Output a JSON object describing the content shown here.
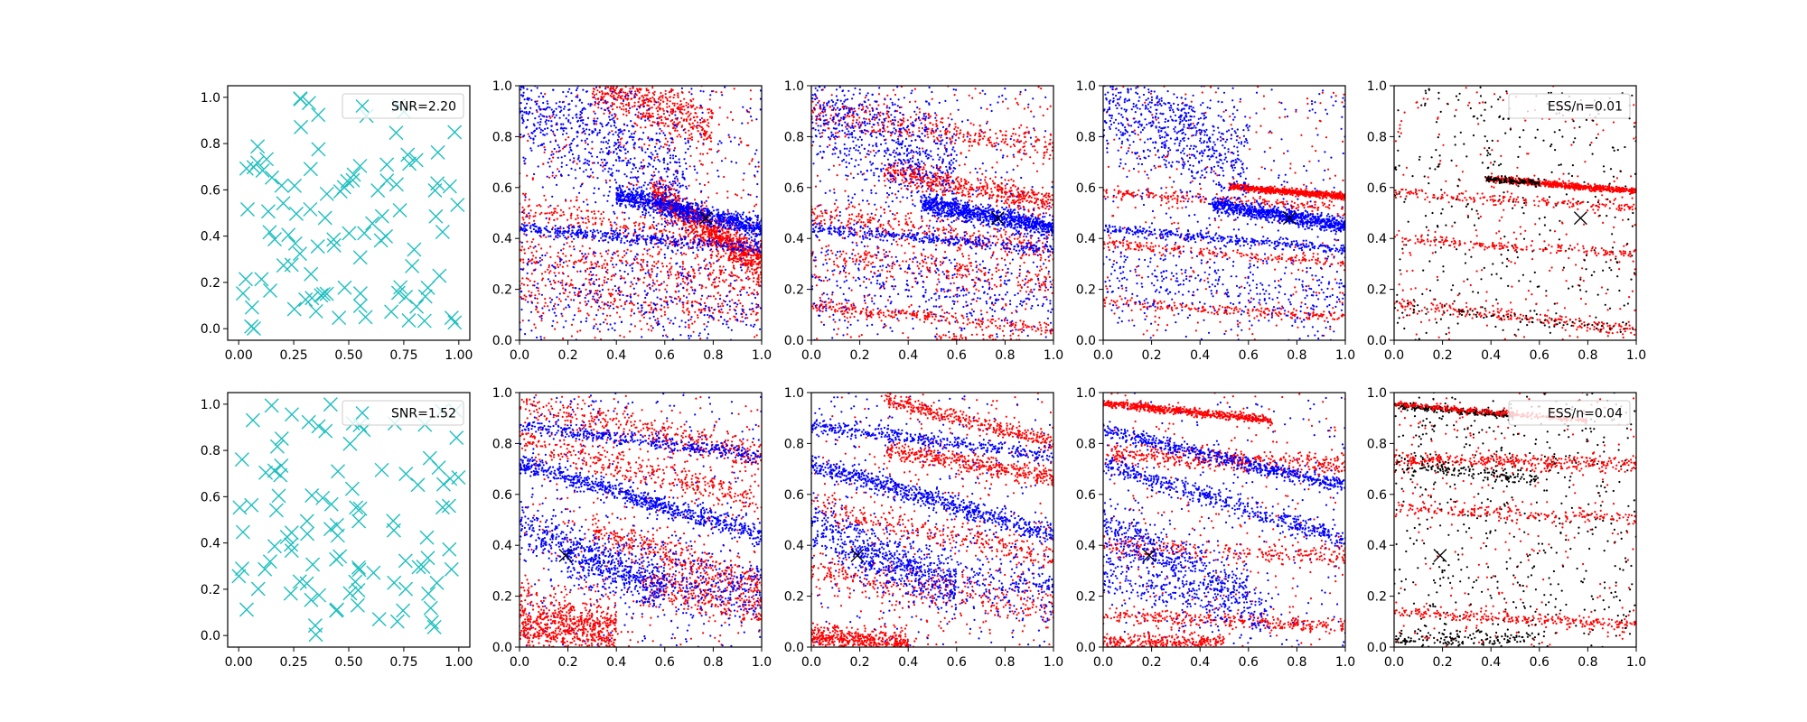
{
  "figure": {
    "background": "#ffffff",
    "colors": {
      "uniform_marker": "#1fbfbf",
      "series_a": "#ff0000",
      "series_b": "#0000ff",
      "weighted": "#000000",
      "true_marker": "#000000"
    }
  },
  "chart_data": [
    {
      "type": "scatter",
      "row": 0,
      "col": 0,
      "xlim": [
        -0.05,
        1.05
      ],
      "ylim": [
        -0.05,
        1.05
      ],
      "xticks": [
        "0.00",
        "0.25",
        "0.50",
        "0.75",
        "1.00"
      ],
      "yticks": [
        "0.0",
        "0.2",
        "0.4",
        "0.6",
        "0.8",
        "1.0"
      ],
      "marker": "x",
      "marker_color": "#1fbfbf",
      "num_points": 100,
      "seed": 11,
      "legend": {
        "label": "SNR=2.20",
        "placement": "upper right",
        "marker": "x"
      }
    },
    {
      "type": "scatter",
      "row": 0,
      "col": 1,
      "xlim": [
        0,
        1
      ],
      "ylim": [
        0,
        1
      ],
      "xticks": [
        "0.0",
        "0.2",
        "0.4",
        "0.6",
        "0.8",
        "1.0"
      ],
      "yticks": [
        "0.0",
        "0.2",
        "0.4",
        "0.6",
        "0.8",
        "1.0"
      ],
      "true_point": [
        0.77,
        0.48
      ],
      "seed": 21,
      "bands": [
        {
          "color": "red",
          "x": [
            0.0,
            1.0
          ],
          "y0": 0.52,
          "slope": -0.18,
          "spread": 0.03,
          "n": 260
        },
        {
          "color": "red",
          "x": [
            0.55,
            1.0
          ],
          "y0": 0.92,
          "slope": -0.62,
          "spread": 0.035,
          "n": 900
        },
        {
          "color": "red",
          "x": [
            0.3,
            0.8
          ],
          "y0": 1.08,
          "slope": -0.3,
          "spread": 0.05,
          "n": 500
        },
        {
          "color": "red",
          "x": [
            0.0,
            1.0
          ],
          "y0": 0.34,
          "slope": -0.12,
          "spread": 0.035,
          "n": 300
        },
        {
          "color": "red",
          "x": [
            0.0,
            1.0
          ],
          "y0": 0.2,
          "slope": -0.1,
          "spread": 0.04,
          "n": 250
        },
        {
          "color": "blue",
          "x": [
            0.4,
            1.0
          ],
          "y0": 0.66,
          "slope": -0.22,
          "spread": 0.02,
          "n": 900
        },
        {
          "color": "blue",
          "x": [
            0.0,
            1.0
          ],
          "y0": 0.44,
          "slope": -0.08,
          "spread": 0.012,
          "n": 400
        },
        {
          "color": "blue",
          "x": [
            0.0,
            0.7
          ],
          "y0": 0.95,
          "slope": -0.5,
          "spread": 0.12,
          "n": 700
        },
        {
          "color": "blue",
          "x": [
            0.0,
            1.0
          ],
          "y0": 0.2,
          "slope": -0.08,
          "spread": 0.1,
          "n": 300
        }
      ],
      "noise": {
        "red": 450,
        "blue": 350
      }
    },
    {
      "type": "scatter",
      "row": 0,
      "col": 2,
      "xlim": [
        0,
        1
      ],
      "ylim": [
        0,
        1
      ],
      "xticks": [
        "0.0",
        "0.2",
        "0.4",
        "0.6",
        "0.8",
        "1.0"
      ],
      "yticks": [
        "0.0",
        "0.2",
        "0.4",
        "0.6",
        "0.8",
        "1.0"
      ],
      "true_point": [
        0.77,
        0.48
      ],
      "seed": 31,
      "bands": [
        {
          "color": "red",
          "x": [
            0.3,
            1.0
          ],
          "y0": 0.72,
          "slope": -0.18,
          "spread": 0.025,
          "n": 500
        },
        {
          "color": "red",
          "x": [
            0.0,
            1.0
          ],
          "y0": 0.9,
          "slope": -0.15,
          "spread": 0.03,
          "n": 350
        },
        {
          "color": "red",
          "x": [
            0.0,
            1.0
          ],
          "y0": 0.5,
          "slope": -0.15,
          "spread": 0.03,
          "n": 300
        },
        {
          "color": "red",
          "x": [
            0.0,
            1.0
          ],
          "y0": 0.34,
          "slope": -0.12,
          "spread": 0.03,
          "n": 250
        },
        {
          "color": "red",
          "x": [
            0.0,
            1.0
          ],
          "y0": 0.14,
          "slope": -0.1,
          "spread": 0.012,
          "n": 250
        },
        {
          "color": "red",
          "x": [
            0.5,
            1.0
          ],
          "y0": 0.04,
          "slope": -0.06,
          "spread": 0.012,
          "n": 100
        },
        {
          "color": "blue",
          "x": [
            0.45,
            1.0
          ],
          "y0": 0.62,
          "slope": -0.18,
          "spread": 0.02,
          "n": 900
        },
        {
          "color": "blue",
          "x": [
            0.0,
            1.0
          ],
          "y0": 0.44,
          "slope": -0.08,
          "spread": 0.012,
          "n": 350
        },
        {
          "color": "blue",
          "x": [
            0.0,
            0.6
          ],
          "y0": 0.9,
          "slope": -0.4,
          "spread": 0.1,
          "n": 600
        },
        {
          "color": "blue",
          "x": [
            0.0,
            1.0
          ],
          "y0": 0.25,
          "slope": -0.1,
          "spread": 0.08,
          "n": 300
        }
      ],
      "noise": {
        "red": 400,
        "blue": 350
      }
    },
    {
      "type": "scatter",
      "row": 0,
      "col": 3,
      "xlim": [
        0,
        1
      ],
      "ylim": [
        0,
        1
      ],
      "xticks": [
        "0.0",
        "0.2",
        "0.4",
        "0.6",
        "0.8",
        "1.0"
      ],
      "yticks": [
        "0.0",
        "0.2",
        "0.4",
        "0.6",
        "0.8",
        "1.0"
      ],
      "true_point": [
        0.77,
        0.48
      ],
      "seed": 41,
      "bands": [
        {
          "color": "red",
          "x": [
            0.52,
            1.0
          ],
          "y0": 0.645,
          "slope": -0.08,
          "spread": 0.006,
          "n": 700
        },
        {
          "color": "red",
          "x": [
            0.0,
            1.0
          ],
          "y0": 0.58,
          "slope": -0.06,
          "spread": 0.01,
          "n": 200
        },
        {
          "color": "red",
          "x": [
            0.0,
            1.0
          ],
          "y0": 0.38,
          "slope": -0.08,
          "spread": 0.01,
          "n": 200
        },
        {
          "color": "red",
          "x": [
            0.0,
            1.0
          ],
          "y0": 0.15,
          "slope": -0.06,
          "spread": 0.01,
          "n": 200
        },
        {
          "color": "blue",
          "x": [
            0.45,
            1.0
          ],
          "y0": 0.6,
          "slope": -0.15,
          "spread": 0.015,
          "n": 800
        },
        {
          "color": "blue",
          "x": [
            0.0,
            1.0
          ],
          "y0": 0.44,
          "slope": -0.08,
          "spread": 0.01,
          "n": 350
        },
        {
          "color": "blue",
          "x": [
            0.0,
            0.6
          ],
          "y0": 0.95,
          "slope": -0.45,
          "spread": 0.1,
          "n": 650
        },
        {
          "color": "blue",
          "x": [
            0.0,
            1.0
          ],
          "y0": 0.25,
          "slope": -0.1,
          "spread": 0.08,
          "n": 300
        }
      ],
      "noise": {
        "red": 300,
        "blue": 300
      }
    },
    {
      "type": "scatter",
      "row": 0,
      "col": 4,
      "xlim": [
        0,
        1
      ],
      "ylim": [
        0,
        1
      ],
      "xticks": [
        "0.0",
        "0.2",
        "0.4",
        "0.6",
        "0.8",
        "1.0"
      ],
      "yticks": [
        "0.0",
        "0.2",
        "0.4",
        "0.6",
        "0.8",
        "1.0"
      ],
      "true_point": [
        0.77,
        0.48
      ],
      "seed": 51,
      "bands": [
        {
          "color": "red",
          "x": [
            0.38,
            1.0
          ],
          "y0": 0.665,
          "slope": -0.08,
          "spread": 0.006,
          "n": 650
        },
        {
          "color": "red",
          "x": [
            0.0,
            1.0
          ],
          "y0": 0.58,
          "slope": -0.06,
          "spread": 0.01,
          "n": 180
        },
        {
          "color": "red",
          "x": [
            0.0,
            1.0
          ],
          "y0": 0.4,
          "slope": -0.06,
          "spread": 0.01,
          "n": 180
        },
        {
          "color": "red",
          "x": [
            0.0,
            1.0
          ],
          "y0": 0.14,
          "slope": -0.1,
          "spread": 0.012,
          "n": 220
        },
        {
          "color": "black",
          "x": [
            0.38,
            0.6
          ],
          "y0": 0.665,
          "slope": -0.08,
          "spread": 0.006,
          "n": 120
        },
        {
          "color": "black",
          "x": [
            0.0,
            1.0
          ],
          "y0": 0.14,
          "slope": -0.1,
          "spread": 0.012,
          "n": 60
        }
      ],
      "noise": {
        "red": 250,
        "black": 350
      },
      "legend": {
        "label": "ESS/n=0.01",
        "placement": "upper right",
        "marker": "none"
      }
    },
    {
      "type": "scatter",
      "row": 1,
      "col": 0,
      "xlim": [
        -0.05,
        1.05
      ],
      "ylim": [
        -0.05,
        1.05
      ],
      "xticks": [
        "0.00",
        "0.25",
        "0.50",
        "0.75",
        "1.00"
      ],
      "yticks": [
        "0.0",
        "0.2",
        "0.4",
        "0.6",
        "0.8",
        "1.0"
      ],
      "marker": "x",
      "marker_color": "#1fbfbf",
      "num_points": 100,
      "seed": 12,
      "legend": {
        "label": "SNR=1.52",
        "placement": "upper right",
        "marker": "x"
      }
    },
    {
      "type": "scatter",
      "row": 1,
      "col": 1,
      "xlim": [
        0,
        1
      ],
      "ylim": [
        0,
        1
      ],
      "xticks": [
        "0.0",
        "0.2",
        "0.4",
        "0.6",
        "0.8",
        "1.0"
      ],
      "yticks": [
        "0.0",
        "0.2",
        "0.4",
        "0.6",
        "0.8",
        "1.0"
      ],
      "true_point": [
        0.19,
        0.36
      ],
      "seed": 61,
      "bands": [
        {
          "color": "red",
          "x": [
            0.0,
            0.4
          ],
          "y0": 0.1,
          "slope": -0.1,
          "spread": 0.06,
          "n": 700
        },
        {
          "color": "red",
          "x": [
            0.0,
            1.0
          ],
          "y0": 0.95,
          "slope": -0.2,
          "spread": 0.03,
          "n": 350
        },
        {
          "color": "red",
          "x": [
            0.0,
            1.0
          ],
          "y0": 0.82,
          "slope": -0.25,
          "spread": 0.03,
          "n": 350
        },
        {
          "color": "red",
          "x": [
            0.3,
            1.0
          ],
          "y0": 0.55,
          "slope": -0.3,
          "spread": 0.03,
          "n": 350
        },
        {
          "color": "red",
          "x": [
            0.5,
            1.0
          ],
          "y0": 0.35,
          "slope": -0.2,
          "spread": 0.04,
          "n": 300
        },
        {
          "color": "blue",
          "x": [
            0.0,
            1.0
          ],
          "y0": 0.72,
          "slope": -0.28,
          "spread": 0.02,
          "n": 700
        },
        {
          "color": "blue",
          "x": [
            0.0,
            1.0
          ],
          "y0": 0.87,
          "slope": -0.12,
          "spread": 0.015,
          "n": 400
        },
        {
          "color": "blue",
          "x": [
            0.0,
            0.6
          ],
          "y0": 0.48,
          "slope": -0.45,
          "spread": 0.05,
          "n": 500
        },
        {
          "color": "blue",
          "x": [
            0.2,
            1.0
          ],
          "y0": 0.4,
          "slope": -0.2,
          "spread": 0.06,
          "n": 400
        }
      ],
      "noise": {
        "red": 350,
        "blue": 350
      }
    },
    {
      "type": "scatter",
      "row": 1,
      "col": 2,
      "xlim": [
        0,
        1
      ],
      "ylim": [
        0,
        1
      ],
      "xticks": [
        "0.0",
        "0.2",
        "0.4",
        "0.6",
        "0.8",
        "1.0"
      ],
      "yticks": [
        "0.0",
        "0.2",
        "0.4",
        "0.6",
        "0.8",
        "1.0"
      ],
      "true_point": [
        0.19,
        0.36
      ],
      "seed": 71,
      "bands": [
        {
          "color": "red",
          "x": [
            0.0,
            0.4
          ],
          "y0": 0.04,
          "slope": -0.06,
          "spread": 0.025,
          "n": 450
        },
        {
          "color": "red",
          "x": [
            0.3,
            1.0
          ],
          "y0": 1.05,
          "slope": -0.25,
          "spread": 0.015,
          "n": 350
        },
        {
          "color": "red",
          "x": [
            0.3,
            1.0
          ],
          "y0": 0.82,
          "slope": -0.15,
          "spread": 0.02,
          "n": 400
        },
        {
          "color": "red",
          "x": [
            0.0,
            1.0
          ],
          "y0": 0.55,
          "slope": -0.2,
          "spread": 0.03,
          "n": 300
        },
        {
          "color": "red",
          "x": [
            0.0,
            1.0
          ],
          "y0": 0.3,
          "slope": -0.15,
          "spread": 0.04,
          "n": 300
        },
        {
          "color": "blue",
          "x": [
            0.0,
            1.0
          ],
          "y0": 0.72,
          "slope": -0.28,
          "spread": 0.02,
          "n": 700
        },
        {
          "color": "blue",
          "x": [
            0.0,
            1.0
          ],
          "y0": 0.87,
          "slope": -0.12,
          "spread": 0.015,
          "n": 400
        },
        {
          "color": "blue",
          "x": [
            0.0,
            0.6
          ],
          "y0": 0.48,
          "slope": -0.45,
          "spread": 0.05,
          "n": 500
        },
        {
          "color": "blue",
          "x": [
            0.2,
            1.0
          ],
          "y0": 0.4,
          "slope": -0.2,
          "spread": 0.06,
          "n": 350
        }
      ],
      "noise": {
        "red": 350,
        "blue": 300
      }
    },
    {
      "type": "scatter",
      "row": 1,
      "col": 3,
      "xlim": [
        0,
        1
      ],
      "ylim": [
        0,
        1
      ],
      "xticks": [
        "0.0",
        "0.2",
        "0.4",
        "0.6",
        "0.8",
        "1.0"
      ],
      "yticks": [
        "0.0",
        "0.2",
        "0.4",
        "0.6",
        "0.8",
        "1.0"
      ],
      "true_point": [
        0.19,
        0.36
      ],
      "seed": 81,
      "bands": [
        {
          "color": "red",
          "x": [
            0.0,
            0.7
          ],
          "y0": 0.96,
          "slope": -0.1,
          "spread": 0.008,
          "n": 600
        },
        {
          "color": "red",
          "x": [
            0.0,
            1.0
          ],
          "y0": 0.76,
          "slope": -0.05,
          "spread": 0.02,
          "n": 400
        },
        {
          "color": "red",
          "x": [
            0.0,
            1.0
          ],
          "y0": 0.4,
          "slope": -0.05,
          "spread": 0.02,
          "n": 250
        },
        {
          "color": "red",
          "x": [
            0.0,
            1.0
          ],
          "y0": 0.13,
          "slope": -0.05,
          "spread": 0.015,
          "n": 300
        },
        {
          "color": "red",
          "x": [
            0.0,
            0.5
          ],
          "y0": 0.02,
          "slope": 0.0,
          "spread": 0.015,
          "n": 300
        },
        {
          "color": "blue",
          "x": [
            0.0,
            1.0
          ],
          "y0": 0.85,
          "slope": -0.22,
          "spread": 0.015,
          "n": 600
        },
        {
          "color": "blue",
          "x": [
            0.0,
            1.0
          ],
          "y0": 0.72,
          "slope": -0.3,
          "spread": 0.02,
          "n": 500
        },
        {
          "color": "blue",
          "x": [
            0.0,
            0.6
          ],
          "y0": 0.48,
          "slope": -0.45,
          "spread": 0.05,
          "n": 450
        },
        {
          "color": "blue",
          "x": [
            0.0,
            0.7
          ],
          "y0": 0.3,
          "slope": -0.25,
          "spread": 0.05,
          "n": 300
        }
      ],
      "noise": {
        "red": 300,
        "blue": 250
      }
    },
    {
      "type": "scatter",
      "row": 1,
      "col": 4,
      "xlim": [
        0,
        1
      ],
      "ylim": [
        0,
        1
      ],
      "xticks": [
        "0.0",
        "0.2",
        "0.4",
        "0.6",
        "0.8",
        "1.0"
      ],
      "yticks": [
        "0.0",
        "0.2",
        "0.4",
        "0.6",
        "0.8",
        "1.0"
      ],
      "true_point": [
        0.19,
        0.36
      ],
      "seed": 91,
      "bands": [
        {
          "color": "black",
          "x": [
            0.0,
            0.5
          ],
          "y0": 0.95,
          "slope": -0.08,
          "spread": 0.006,
          "n": 250
        },
        {
          "color": "red",
          "x": [
            0.0,
            0.8
          ],
          "y0": 0.955,
          "slope": -0.08,
          "spread": 0.006,
          "n": 300
        },
        {
          "color": "red",
          "x": [
            0.0,
            1.0
          ],
          "y0": 0.74,
          "slope": -0.02,
          "spread": 0.015,
          "n": 350
        },
        {
          "color": "black",
          "x": [
            0.0,
            0.6
          ],
          "y0": 0.72,
          "slope": -0.1,
          "spread": 0.015,
          "n": 150
        },
        {
          "color": "red",
          "x": [
            0.0,
            1.0
          ],
          "y0": 0.55,
          "slope": -0.05,
          "spread": 0.015,
          "n": 200
        },
        {
          "color": "red",
          "x": [
            0.0,
            1.0
          ],
          "y0": 0.14,
          "slope": -0.05,
          "spread": 0.012,
          "n": 250
        },
        {
          "color": "black",
          "x": [
            0.0,
            0.6
          ],
          "y0": 0.03,
          "slope": 0.0,
          "spread": 0.02,
          "n": 150
        }
      ],
      "noise": {
        "red": 300,
        "black": 500
      },
      "legend": {
        "label": "ESS/n=0.04",
        "placement": "upper right",
        "marker": "none"
      }
    }
  ]
}
